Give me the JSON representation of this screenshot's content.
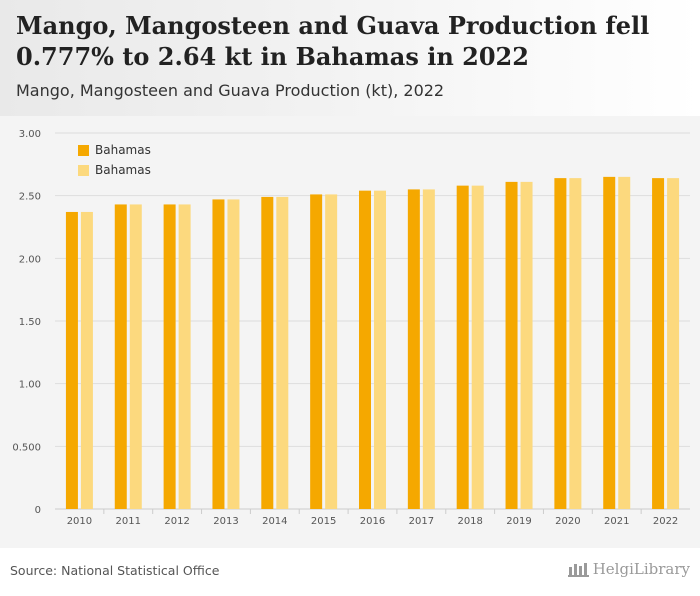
{
  "header": {
    "title": "Mango, Mangosteen and Guava Production fell 0.777% to 2.64 kt in Bahamas in 2022",
    "subtitle": "Mango, Mangosteen and Guava Production (kt), 2022"
  },
  "footer": {
    "source": "Source: National Statistical Office",
    "logo_text": "HelgiLibrary"
  },
  "colors": {
    "series1": "#f5a800",
    "series2": "#fcd97e",
    "grid": "#dddddd",
    "axis_text": "#555555",
    "plot_bg": "#f4f4f4"
  },
  "chart_data": {
    "type": "bar",
    "categories": [
      "2010",
      "2011",
      "2012",
      "2013",
      "2014",
      "2015",
      "2016",
      "2017",
      "2018",
      "2019",
      "2020",
      "2021",
      "2022"
    ],
    "series": [
      {
        "name": "Bahamas",
        "values": [
          2.37,
          2.43,
          2.43,
          2.47,
          2.49,
          2.51,
          2.54,
          2.55,
          2.58,
          2.61,
          2.64,
          2.65,
          2.64
        ]
      },
      {
        "name": "Bahamas",
        "values": [
          2.37,
          2.43,
          2.43,
          2.47,
          2.49,
          2.51,
          2.54,
          2.55,
          2.58,
          2.61,
          2.64,
          2.65,
          2.64
        ]
      }
    ],
    "yticks": [
      "0",
      "0.500",
      "1.00",
      "1.50",
      "2.00",
      "2.50",
      "3.00"
    ],
    "ylim": [
      0,
      3
    ],
    "grid": true,
    "legend_position": "top-left"
  }
}
